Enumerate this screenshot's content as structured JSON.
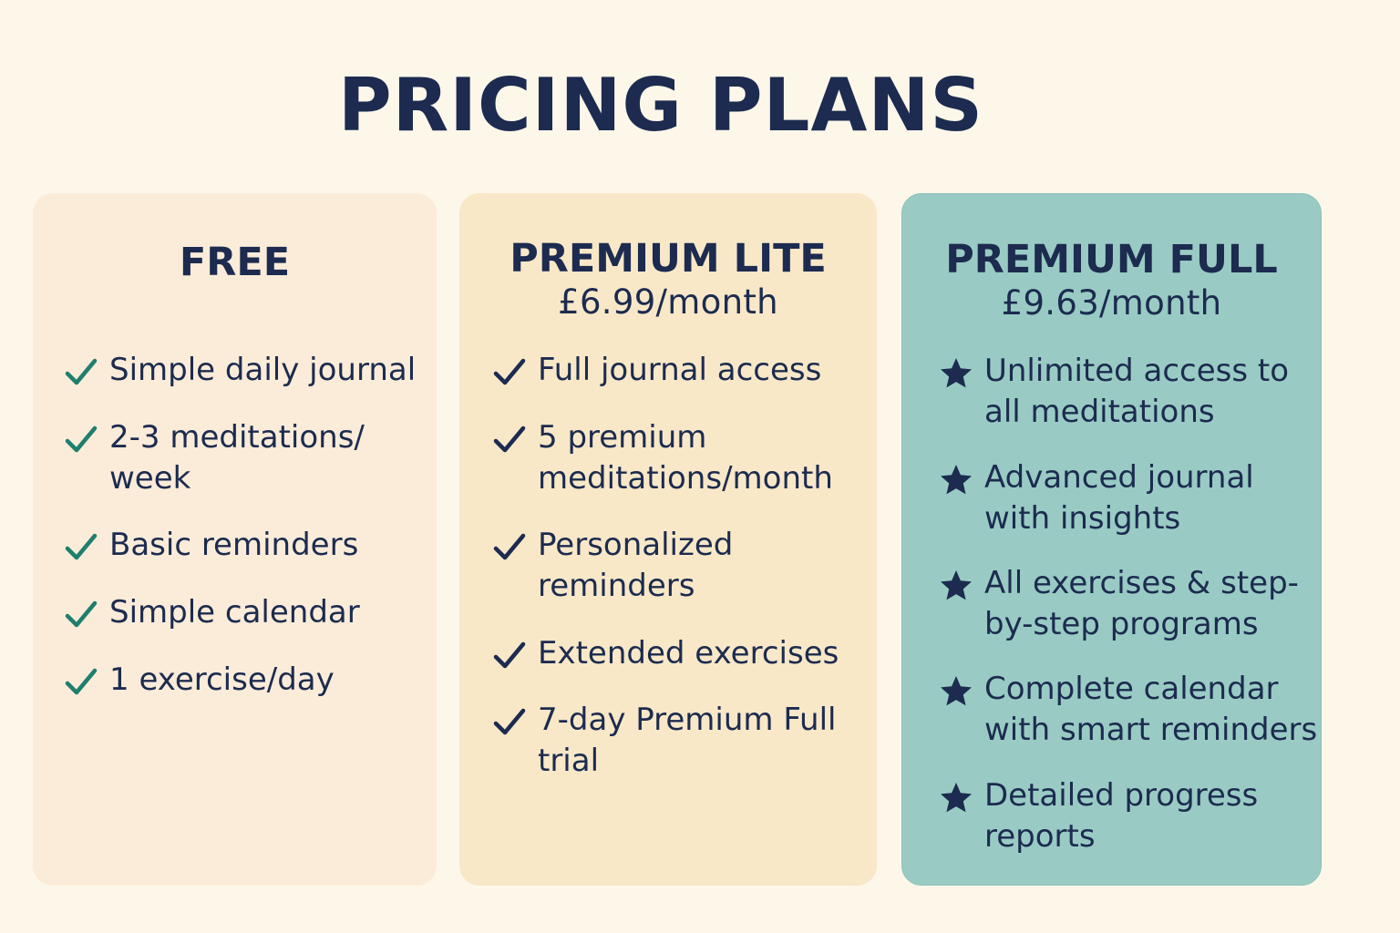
{
  "page": {
    "title": "PRICING PLANS"
  },
  "colors": {
    "background": "#fdf7ea",
    "text": "#1c2b4f",
    "check": "#1f7f6e",
    "free_card": "#fbecd9",
    "lite_card": "#f8e8c8",
    "full_card": "#99cbc4",
    "star": "#1c2b4f"
  },
  "plans": [
    {
      "name": "FREE",
      "price": "",
      "icon": "check-icon",
      "features": [
        {
          "line1": "Simple daily journal",
          "line2": ""
        },
        {
          "line1": "2-3 meditations/",
          "line2": "week"
        },
        {
          "line1": "Basic reminders",
          "line2": ""
        },
        {
          "line1": "Simple calendar",
          "line2": ""
        },
        {
          "line1": "1 exercise/day",
          "line2": ""
        }
      ]
    },
    {
      "name": "PREMIUM LITE",
      "price": "£6.99/month",
      "icon": "check-icon",
      "features": [
        {
          "line1": "Full journal access",
          "line2": ""
        },
        {
          "line1": "5 premium",
          "line2": "meditations/month"
        },
        {
          "line1": "Personalized",
          "line2": "reminders"
        },
        {
          "line1": "Extended exercises",
          "line2": ""
        },
        {
          "line1": "7-day Premium Full",
          "line2": "trial"
        }
      ]
    },
    {
      "name": "PREMIUM FULL",
      "price": "£9.63/month",
      "icon": "star-icon",
      "features": [
        {
          "line1": "Unlimited access to",
          "line2": "all meditations"
        },
        {
          "line1": "Advanced journal",
          "line2": "with insights"
        },
        {
          "line1": "All exercises & step-",
          "line2": "by-step programs"
        },
        {
          "line1": "Complete calendar",
          "line2": "with smart reminders"
        },
        {
          "line1": "Detailed progress",
          "line2": "reports"
        }
      ]
    }
  ]
}
